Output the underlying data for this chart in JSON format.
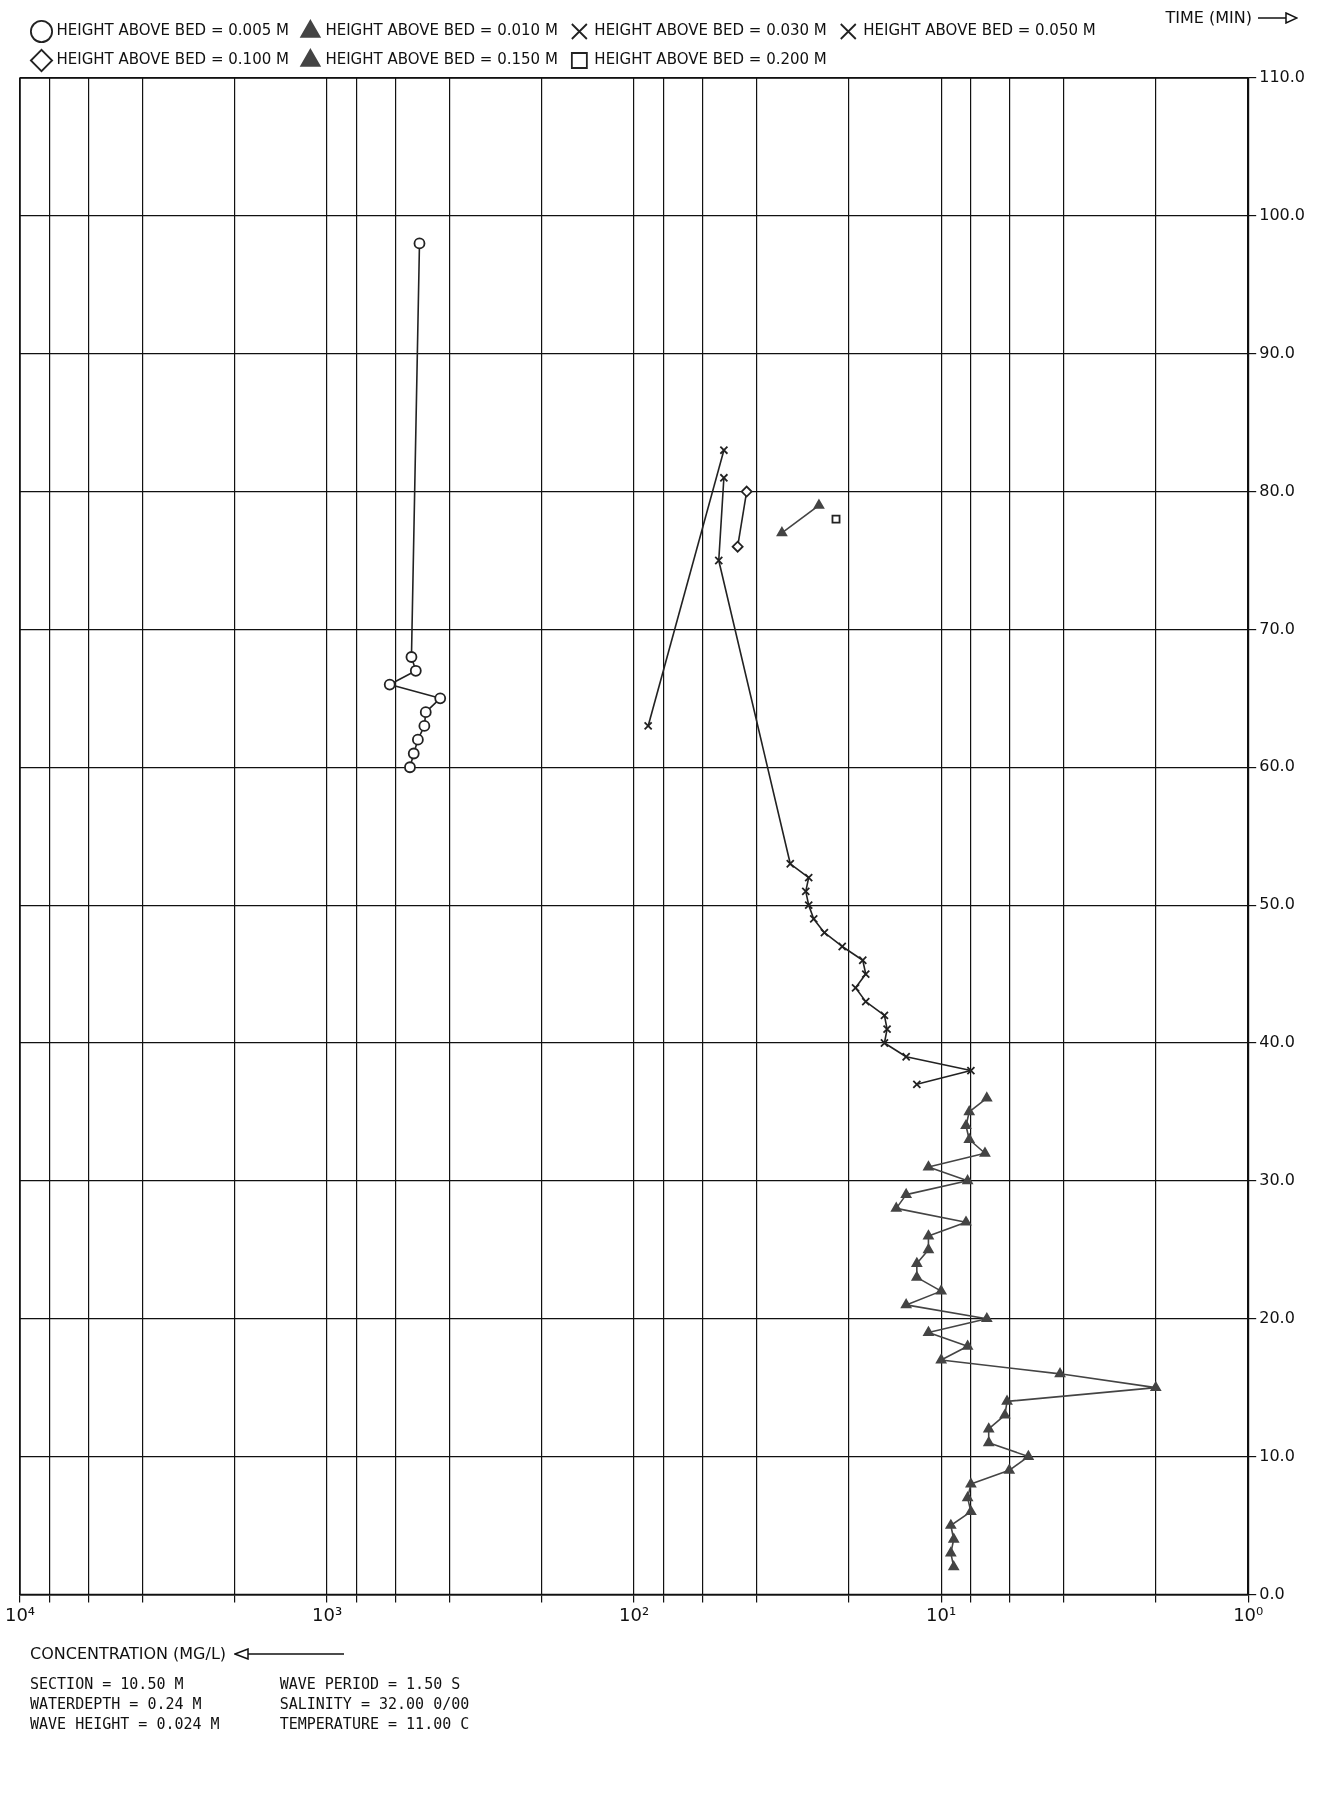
{
  "chart_data": {
    "type": "line",
    "xlabel": "CONCENTRATION (MG/L)",
    "ylabel": "TIME (MIN)",
    "log": "x",
    "xlim": [
      10000,
      1
    ],
    "ylim": [
      0,
      110
    ],
    "xticks": [
      {
        "value": 10000,
        "label": "10⁴"
      },
      {
        "value": 8000,
        "label": null
      },
      {
        "value": 6000,
        "label": null
      },
      {
        "value": 4000,
        "label": null
      },
      {
        "value": 2000,
        "label": null
      },
      {
        "value": 1000,
        "label": "10³"
      },
      {
        "value": 800,
        "label": null
      },
      {
        "value": 600,
        "label": null
      },
      {
        "value": 400,
        "label": null
      },
      {
        "value": 200,
        "label": null
      },
      {
        "value": 100,
        "label": "10²"
      },
      {
        "value": 80,
        "label": null
      },
      {
        "value": 60,
        "label": null
      },
      {
        "value": 40,
        "label": null
      },
      {
        "value": 20,
        "label": null
      },
      {
        "value": 10,
        "label": "10¹"
      },
      {
        "value": 8,
        "label": null
      },
      {
        "value": 6,
        "label": null
      },
      {
        "value": 4,
        "label": null
      },
      {
        "value": 2,
        "label": null
      },
      {
        "value": 1,
        "label": "10⁰"
      }
    ],
    "yticks": [
      {
        "value": 0,
        "label": "0.0"
      },
      {
        "value": 10,
        "label": "10.0"
      },
      {
        "value": 20,
        "label": "20.0"
      },
      {
        "value": 30,
        "label": "30.0"
      },
      {
        "value": 40,
        "label": "40.0"
      },
      {
        "value": 50,
        "label": "50.0"
      },
      {
        "value": 60,
        "label": "60.0"
      },
      {
        "value": 70,
        "label": "70.0"
      },
      {
        "value": 80,
        "label": "80.0"
      },
      {
        "value": 90,
        "label": "90.0"
      },
      {
        "value": 100,
        "label": "100.0"
      },
      {
        "value": 110,
        "label": "110.0"
      }
    ],
    "grid": true,
    "legend": "top left",
    "line_style": "solid",
    "series": [
      {
        "name": "HEIGHT ABOVE BED = 0.005 M",
        "color": "#222222",
        "marker": "circle",
        "x": [
          537,
          522,
          506,
          482,
          477,
          428,
          625,
          514,
          531,
          500
        ],
        "values": [
          60,
          61,
          62,
          63,
          64,
          65,
          66,
          67,
          68,
          98
        ]
      },
      {
        "name": "HEIGHT ABOVE BED = 0.010 M",
        "color": "#444444",
        "marker": "triangle",
        "x": [
          9.1,
          9.3,
          9.1,
          9.3,
          8,
          8.2,
          8,
          6,
          5.2,
          7,
          7,
          6.2,
          6.1,
          2,
          4.1,
          10,
          8.2,
          11,
          7.1,
          13,
          10,
          12,
          12,
          11,
          11,
          8.3,
          14,
          13,
          8.2,
          11,
          7.2,
          8.1,
          8.3,
          8.1,
          7.1
        ],
        "values": [
          2,
          3,
          4,
          5,
          6,
          7,
          8,
          9,
          10,
          11,
          12,
          13,
          14,
          15,
          16,
          17,
          18,
          19,
          20,
          21,
          22,
          23,
          24,
          25,
          26,
          27,
          28,
          29,
          30,
          31,
          32,
          33,
          34,
          35,
          36
        ]
      },
      {
        "name": "HEIGHT ABOVE BED = 0.030 M",
        "color": "#222222",
        "marker": "cross",
        "x": [
          90,
          51
        ],
        "values": [
          63,
          83
        ]
      },
      {
        "name": "HEIGHT ABOVE BED = 0.050 M",
        "color": "#222222",
        "marker": "cross",
        "x": [
          12,
          8,
          13,
          15.3,
          15,
          15.3,
          17.6,
          19,
          17.6,
          18,
          21,
          24,
          26,
          27,
          27.6,
          27,
          31,
          53,
          51
        ],
        "values": [
          37,
          38,
          39,
          40,
          41,
          42,
          43,
          44,
          45,
          46,
          47,
          48,
          49,
          50,
          51,
          52,
          53,
          75,
          81
        ]
      },
      {
        "name": "HEIGHT ABOVE BED = 0.100 M",
        "color": "#222222",
        "marker": "diamond",
        "x": [
          46,
          43
        ],
        "values": [
          76,
          80
        ]
      },
      {
        "name": "HEIGHT ABOVE BED = 0.150 M",
        "color": "#444444",
        "marker": "triangle",
        "x": [
          33,
          25
        ],
        "values": [
          77,
          79
        ]
      },
      {
        "name": "HEIGHT ABOVE BED = 0.200 M",
        "color": "#222222",
        "marker": "square",
        "x": [
          22
        ],
        "values": [
          78
        ]
      }
    ],
    "annotations": [
      "SECTION = 10.50 M",
      "WATERDEPTH = 0.24 M",
      "WAVE HEIGHT = 0.024 M",
      "WAVE PERIOD = 1.50 S",
      "SALINITY = 32.00 0/00",
      "TEMPERATURE = 11.00 C"
    ]
  }
}
